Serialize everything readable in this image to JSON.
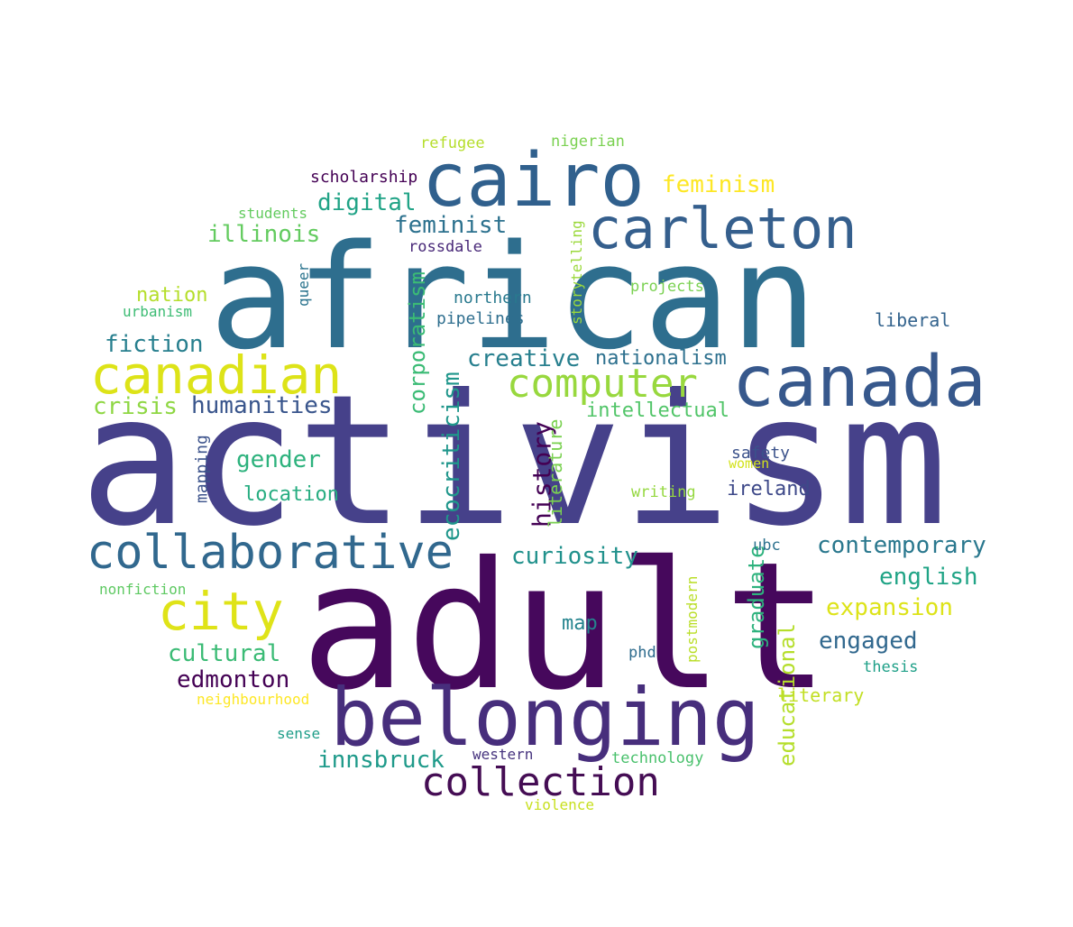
{
  "words": [
    {
      "text": "activism",
      "color": "#46418a"
    },
    {
      "text": "adult",
      "color": "#46085c"
    },
    {
      "text": "african",
      "color": "#2e6e8e"
    },
    {
      "text": "belonging",
      "color": "#472e7c"
    },
    {
      "text": "cairo",
      "color": "#30608d"
    },
    {
      "text": "canada",
      "color": "#37588c"
    },
    {
      "text": "carleton",
      "color": "#355f8d"
    },
    {
      "text": "canadian",
      "color": "#dde318"
    },
    {
      "text": "collaborative",
      "color": "#31688e"
    },
    {
      "text": "computer",
      "color": "#98d83e"
    },
    {
      "text": "city",
      "color": "#dfe318"
    },
    {
      "text": "collection",
      "color": "#450d54"
    },
    {
      "text": "history",
      "color": "#440154"
    },
    {
      "text": "ecocriticism",
      "color": "#1f968b"
    },
    {
      "text": "corporatism",
      "color": "#3bbb75"
    },
    {
      "text": "feminism",
      "color": "#fde725"
    },
    {
      "text": "digital",
      "color": "#20a386"
    },
    {
      "text": "feminist",
      "color": "#2c718e"
    },
    {
      "text": "illinois",
      "color": "#63cb5f"
    },
    {
      "text": "fiction",
      "color": "#277f8e"
    },
    {
      "text": "creative",
      "color": "#277f8e"
    },
    {
      "text": "nationalism",
      "color": "#2d708e"
    },
    {
      "text": "humanities",
      "color": "#39558c"
    },
    {
      "text": "crisis",
      "color": "#8fd744"
    },
    {
      "text": "intellectual",
      "color": "#52c569"
    },
    {
      "text": "gender",
      "color": "#2db27d"
    },
    {
      "text": "location",
      "color": "#27ad81"
    },
    {
      "text": "curiosity",
      "color": "#21918c"
    },
    {
      "text": "contemporary",
      "color": "#2a788e"
    },
    {
      "text": "english",
      "color": "#20a486"
    },
    {
      "text": "expansion",
      "color": "#dde318"
    },
    {
      "text": "engaged",
      "color": "#31688e"
    },
    {
      "text": "cultural",
      "color": "#3bbb75"
    },
    {
      "text": "edmonton",
      "color": "#440154"
    },
    {
      "text": "innsbruck",
      "color": "#1f9a8a"
    },
    {
      "text": "graduate",
      "color": "#2db27d"
    },
    {
      "text": "educational",
      "color": "#b5de2b"
    },
    {
      "text": "literature",
      "color": "#7ad151"
    },
    {
      "text": "liberal",
      "color": "#33638d"
    },
    {
      "text": "ireland",
      "color": "#3e4989"
    },
    {
      "text": "map",
      "color": "#25848e"
    },
    {
      "text": "literary",
      "color": "#c2df23"
    },
    {
      "text": "mapping",
      "color": "#3b528b"
    },
    {
      "text": "nation",
      "color": "#b5de2b"
    },
    {
      "text": "northern",
      "color": "#29798e"
    },
    {
      "text": "pipelines",
      "color": "#2e6e8e"
    },
    {
      "text": "projects",
      "color": "#7ad151"
    },
    {
      "text": "storytelling",
      "color": "#9bd93c"
    },
    {
      "text": "rossdale",
      "color": "#482878"
    },
    {
      "text": "queer",
      "color": "#2b748e"
    },
    {
      "text": "scholarship",
      "color": "#440154"
    },
    {
      "text": "students",
      "color": "#63cb5f"
    },
    {
      "text": "refugee",
      "color": "#b5de2b"
    },
    {
      "text": "nigerian",
      "color": "#7ad151"
    },
    {
      "text": "urbanism",
      "color": "#3dbc74"
    },
    {
      "text": "safety",
      "color": "#3b528b"
    },
    {
      "text": "women",
      "color": "#d2e21b"
    },
    {
      "text": "writing",
      "color": "#95d840"
    },
    {
      "text": "ubc",
      "color": "#2c718e"
    },
    {
      "text": "postmodern",
      "color": "#bade28"
    },
    {
      "text": "phd",
      "color": "#2f6c8e"
    },
    {
      "text": "thesis",
      "color": "#1fa088"
    },
    {
      "text": "nonfiction",
      "color": "#5ec962"
    },
    {
      "text": "neighbourhood",
      "color": "#fde725"
    },
    {
      "text": "sense",
      "color": "#1f9e89"
    },
    {
      "text": "western",
      "color": "#46337e"
    },
    {
      "text": "technology",
      "color": "#4ac16d"
    },
    {
      "text": "violence",
      "color": "#c8e020"
    }
  ]
}
